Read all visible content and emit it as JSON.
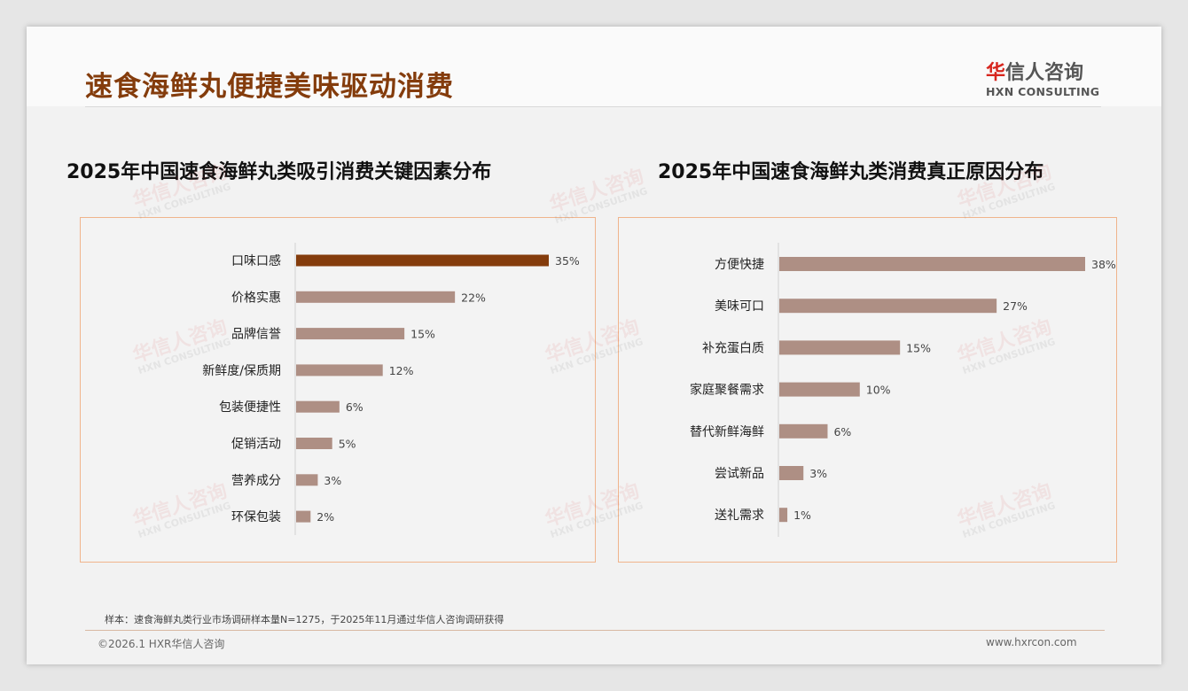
{
  "header": {
    "title": "速食海鲜丸便捷美味驱动消费",
    "logo_cn_accent": "华",
    "logo_cn_rest": "信人咨询",
    "logo_en": "HXN CONSULTING"
  },
  "watermark": {
    "cn": "华信人咨询",
    "en": "HXN CONSULTING"
  },
  "colors": {
    "highlight": "#843c0c",
    "bar": "#ae8f84",
    "title": "#843c0c"
  },
  "chart_data": [
    {
      "type": "bar",
      "orientation": "horizontal",
      "title": "2025年中国速食海鲜丸类吸引消费关键因素分布",
      "categories": [
        "口味口感",
        "价格实惠",
        "品牌信誉",
        "新鲜度/保质期",
        "包装便捷性",
        "促销活动",
        "营养成分",
        "环保包装"
      ],
      "values": [
        35,
        22,
        15,
        12,
        6,
        5,
        3,
        2
      ],
      "unit": "%",
      "highlight_index": 0,
      "xlim": [
        0,
        35
      ]
    },
    {
      "type": "bar",
      "orientation": "horizontal",
      "title": "2025年中国速食海鲜丸类消费真正原因分布",
      "categories": [
        "方便快捷",
        "美味可口",
        "补充蛋白质",
        "家庭聚餐需求",
        "替代新鲜海鲜",
        "尝试新品",
        "送礼需求"
      ],
      "values": [
        38,
        27,
        15,
        10,
        6,
        3,
        1
      ],
      "unit": "%",
      "highlight_index": -1,
      "xlim": [
        0,
        38
      ]
    }
  ],
  "footer": {
    "note": "样本：速食海鲜丸类行业市场调研样本量N=1275，于2025年11月通过华信人咨询调研获得",
    "copyright": "©2026.1 HXR华信人咨询",
    "url": "www.hxrcon.com"
  }
}
